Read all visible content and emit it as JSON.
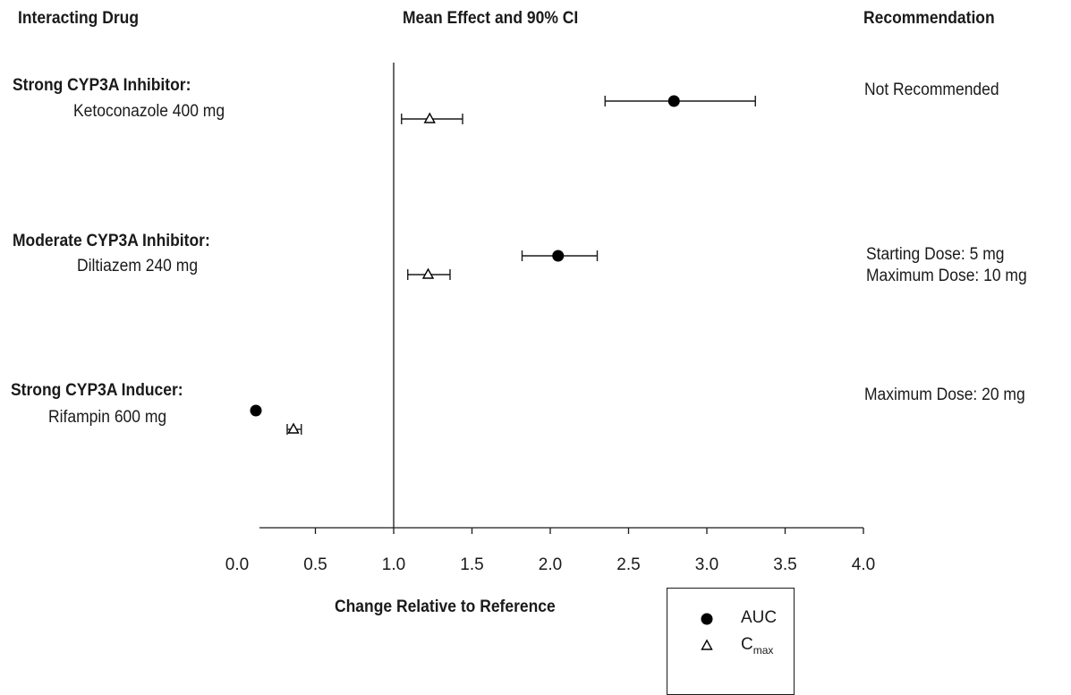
{
  "headers": {
    "drug": "Interacting Drug",
    "effect": "Mean Effect and 90% CI",
    "recommendation": "Recommendation"
  },
  "rows": [
    {
      "drug_class": "Strong CYP3A Inhibitor:",
      "drug_name": "Ketoconazole 400 mg",
      "recommendation": [
        "Not Recommended"
      ]
    },
    {
      "drug_class": "Moderate CYP3A Inhibitor:",
      "drug_name": "Diltiazem 240 mg",
      "recommendation": [
        "Starting Dose: 5 mg",
        "Maximum Dose: 10 mg"
      ]
    },
    {
      "drug_class": "Strong CYP3A Inducer:",
      "drug_name": "Rifampin 600 mg",
      "recommendation": [
        "Maximum Dose: 20 mg"
      ]
    }
  ],
  "legend": {
    "auc": "AUC",
    "cmax_main": "C",
    "cmax_sub": "max"
  },
  "chart_data": {
    "type": "scatter",
    "subtype": "forest-plot",
    "xlabel": "Change Relative to Reference",
    "xlim": [
      0.0,
      4.0
    ],
    "xticks": [
      "0.0",
      "0.5",
      "1.0",
      "1.5",
      "2.0",
      "2.5",
      "3.0",
      "3.5",
      "4.0"
    ],
    "reference_line": 1.0,
    "categories": [
      "Ketoconazole 400 mg",
      "Diltiazem 240 mg",
      "Rifampin 600 mg"
    ],
    "series": [
      {
        "name": "AUC",
        "marker": "filled-circle",
        "points": [
          {
            "mean": 2.79,
            "lo": 2.35,
            "hi": 3.31
          },
          {
            "mean": 2.05,
            "lo": 1.82,
            "hi": 2.3
          },
          {
            "mean": 0.12,
            "lo": null,
            "hi": null
          }
        ]
      },
      {
        "name": "Cmax",
        "marker": "open-triangle",
        "points": [
          {
            "mean": 1.23,
            "lo": 1.05,
            "hi": 1.44
          },
          {
            "mean": 1.22,
            "lo": 1.09,
            "hi": 1.36
          },
          {
            "mean": 0.36,
            "lo": 0.32,
            "hi": 0.41
          }
        ]
      }
    ]
  }
}
